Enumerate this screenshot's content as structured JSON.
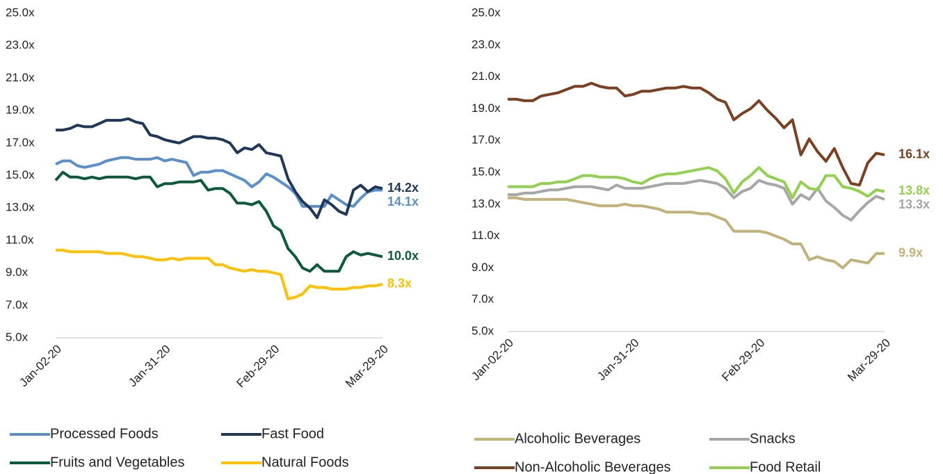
{
  "chart_data": [
    {
      "type": "line",
      "categories": [
        "Jan-02-20",
        null,
        null,
        null,
        null,
        null,
        null,
        null,
        null,
        null,
        null,
        null,
        null,
        null,
        null,
        "Jan-31-20",
        null,
        null,
        null,
        null,
        null,
        null,
        null,
        null,
        null,
        null,
        null,
        null,
        null,
        null,
        "Feb-29-20",
        null,
        null,
        null,
        null,
        null,
        null,
        null,
        null,
        null,
        null,
        null,
        null,
        null,
        null,
        "Mar-29-20"
      ],
      "ylim": [
        5,
        25
      ],
      "yticks": [
        {
          "value": 5,
          "label": "5.0x"
        },
        {
          "value": 7,
          "label": "7.0x"
        },
        {
          "value": 9,
          "label": "9.0x"
        },
        {
          "value": 11,
          "label": "11.0x"
        },
        {
          "value": 13,
          "label": "13.0x"
        },
        {
          "value": 15,
          "label": "15.0x"
        },
        {
          "value": 17,
          "label": "17.0x"
        },
        {
          "value": 19,
          "label": "19.0x"
        },
        {
          "value": 21,
          "label": "21.0x"
        },
        {
          "value": 23,
          "label": "23.0x"
        },
        {
          "value": 25,
          "label": "25.0x"
        }
      ],
      "series": [
        {
          "name": "Processed Foods",
          "color": "#5b8fc9",
          "values": [
            15.7,
            15.9,
            15.9,
            15.6,
            15.5,
            15.6,
            15.7,
            15.9,
            16.0,
            16.1,
            16.1,
            16.0,
            16.0,
            16.0,
            16.1,
            15.9,
            16.0,
            15.9,
            15.8,
            15.0,
            15.2,
            15.2,
            15.3,
            15.3,
            15.1,
            14.9,
            14.7,
            14.3,
            14.6,
            15.1,
            14.9,
            14.6,
            14.3,
            13.9,
            13.1,
            13.1,
            13.1,
            13.1,
            13.8,
            13.5,
            13.2,
            13.1,
            13.6,
            14.0,
            14.1,
            14.1
          ],
          "value_labels": [
            null,
            null,
            null,
            null,
            null,
            null,
            null,
            null,
            null,
            null,
            null,
            null,
            null,
            null,
            null,
            null,
            null,
            null,
            null,
            null,
            null,
            null,
            null,
            null,
            null,
            null,
            null,
            null,
            null,
            null,
            null,
            null,
            null,
            null,
            null,
            null,
            null,
            null,
            null,
            null,
            null,
            null,
            null,
            null,
            null,
            "14.1x"
          ]
        },
        {
          "name": "Fast Food",
          "color": "#1f3857",
          "values": [
            17.8,
            17.8,
            17.9,
            18.1,
            18.0,
            18.0,
            18.2,
            18.4,
            18.4,
            18.4,
            18.5,
            18.3,
            18.2,
            17.5,
            17.4,
            17.2,
            17.1,
            17.0,
            17.2,
            17.4,
            17.4,
            17.3,
            17.3,
            17.2,
            17.0,
            16.4,
            16.7,
            16.6,
            16.9,
            16.4,
            16.3,
            16.2,
            14.8,
            14.0,
            13.4,
            13.0,
            12.4,
            13.5,
            13.2,
            12.8,
            12.6,
            14.1,
            14.4,
            14.0,
            14.3,
            14.2
          ],
          "value_labels": [
            null,
            null,
            null,
            null,
            null,
            null,
            null,
            null,
            null,
            null,
            null,
            null,
            null,
            null,
            null,
            null,
            null,
            null,
            null,
            null,
            null,
            null,
            null,
            null,
            null,
            null,
            null,
            null,
            null,
            null,
            null,
            null,
            null,
            null,
            null,
            null,
            null,
            null,
            null,
            null,
            null,
            null,
            null,
            null,
            null,
            "14.2x"
          ]
        },
        {
          "name": "Fruits and Vegetables",
          "color": "#0b5a3c",
          "values": [
            14.7,
            15.2,
            14.9,
            14.9,
            14.8,
            14.9,
            14.8,
            14.9,
            14.9,
            14.9,
            14.9,
            14.8,
            14.9,
            14.9,
            14.3,
            14.5,
            14.5,
            14.6,
            14.6,
            14.6,
            14.7,
            14.1,
            14.2,
            14.2,
            13.9,
            13.3,
            13.3,
            13.2,
            13.4,
            12.8,
            11.9,
            11.6,
            10.5,
            10.0,
            9.3,
            9.1,
            9.5,
            9.1,
            9.1,
            9.1,
            10.0,
            10.3,
            10.1,
            10.2,
            10.1,
            10.0
          ],
          "value_labels": [
            null,
            null,
            null,
            null,
            null,
            null,
            null,
            null,
            null,
            null,
            null,
            null,
            null,
            null,
            null,
            null,
            null,
            null,
            null,
            null,
            null,
            null,
            null,
            null,
            null,
            null,
            null,
            null,
            null,
            null,
            null,
            null,
            null,
            null,
            null,
            null,
            null,
            null,
            null,
            null,
            null,
            null,
            null,
            null,
            null,
            "10.0x"
          ]
        },
        {
          "name": "Natural Foods",
          "color": "#ffc000",
          "values": [
            10.4,
            10.4,
            10.3,
            10.3,
            10.3,
            10.3,
            10.3,
            10.2,
            10.2,
            10.2,
            10.1,
            10.0,
            10.0,
            9.9,
            9.8,
            9.8,
            9.9,
            9.8,
            9.9,
            9.9,
            9.9,
            9.9,
            9.5,
            9.5,
            9.3,
            9.2,
            9.1,
            9.2,
            9.1,
            9.1,
            9.0,
            8.9,
            7.4,
            7.5,
            7.7,
            8.2,
            8.1,
            8.1,
            8.0,
            8.0,
            8.0,
            8.1,
            8.1,
            8.2,
            8.2,
            8.3
          ],
          "value_labels": [
            null,
            null,
            null,
            null,
            null,
            null,
            null,
            null,
            null,
            null,
            null,
            null,
            null,
            null,
            null,
            null,
            null,
            null,
            null,
            null,
            null,
            null,
            null,
            null,
            null,
            null,
            null,
            null,
            null,
            null,
            null,
            null,
            null,
            null,
            null,
            null,
            null,
            null,
            null,
            null,
            null,
            null,
            null,
            null,
            null,
            "8.3x"
          ]
        }
      ]
    },
    {
      "type": "line",
      "categories": [
        "Jan-02-20",
        null,
        null,
        null,
        null,
        null,
        null,
        null,
        null,
        null,
        null,
        null,
        null,
        null,
        null,
        "Jan-31-20",
        null,
        null,
        null,
        null,
        null,
        null,
        null,
        null,
        null,
        null,
        null,
        null,
        null,
        null,
        "Feb-29-20",
        null,
        null,
        null,
        null,
        null,
        null,
        null,
        null,
        null,
        null,
        null,
        null,
        null,
        null,
        "Mar-29-20"
      ],
      "ylim": [
        5,
        25
      ],
      "yticks": [
        {
          "value": 5,
          "label": "5.0x"
        },
        {
          "value": 7,
          "label": "7.0x"
        },
        {
          "value": 9,
          "label": "9.0x"
        },
        {
          "value": 11,
          "label": "11.0x"
        },
        {
          "value": 13,
          "label": "13.0x"
        },
        {
          "value": 15,
          "label": "15.0x"
        },
        {
          "value": 17,
          "label": "17.0x"
        },
        {
          "value": 19,
          "label": "19.0x"
        },
        {
          "value": 21,
          "label": "21.0x"
        },
        {
          "value": 23,
          "label": "23.0x"
        },
        {
          "value": 25,
          "label": "25.0x"
        }
      ],
      "series": [
        {
          "name": "Alcoholic Beverages",
          "color": "#c2b27a",
          "values": [
            13.4,
            13.4,
            13.3,
            13.3,
            13.3,
            13.3,
            13.3,
            13.3,
            13.2,
            13.1,
            13.0,
            12.9,
            12.9,
            12.9,
            13.0,
            12.9,
            12.9,
            12.8,
            12.7,
            12.5,
            12.5,
            12.5,
            12.5,
            12.4,
            12.4,
            12.2,
            12.0,
            11.3,
            11.3,
            11.3,
            11.3,
            11.2,
            11.0,
            10.8,
            10.5,
            10.5,
            9.5,
            9.7,
            9.5,
            9.4,
            9.0,
            9.5,
            9.4,
            9.3,
            9.9,
            9.9
          ],
          "value_labels": [
            null,
            null,
            null,
            null,
            null,
            null,
            null,
            null,
            null,
            null,
            null,
            null,
            null,
            null,
            null,
            null,
            null,
            null,
            null,
            null,
            null,
            null,
            null,
            null,
            null,
            null,
            null,
            null,
            null,
            null,
            null,
            null,
            null,
            null,
            null,
            null,
            null,
            null,
            null,
            null,
            null,
            null,
            null,
            null,
            null,
            "9.9x"
          ]
        },
        {
          "name": "Snacks",
          "color": "#a6a6a6",
          "values": [
            13.6,
            13.6,
            13.7,
            13.7,
            13.8,
            13.9,
            13.9,
            14.0,
            14.1,
            14.1,
            14.1,
            14.0,
            13.9,
            14.2,
            14.0,
            14.0,
            14.0,
            14.1,
            14.2,
            14.3,
            14.3,
            14.3,
            14.4,
            14.5,
            14.4,
            14.3,
            14.0,
            13.4,
            13.8,
            14.0,
            14.5,
            14.3,
            14.2,
            14.0,
            13.0,
            13.6,
            13.3,
            14.0,
            13.2,
            12.8,
            12.3,
            12.0,
            12.6,
            13.1,
            13.5,
            13.3
          ],
          "value_labels": [
            null,
            null,
            null,
            null,
            null,
            null,
            null,
            null,
            null,
            null,
            null,
            null,
            null,
            null,
            null,
            null,
            null,
            null,
            null,
            null,
            null,
            null,
            null,
            null,
            null,
            null,
            null,
            null,
            null,
            null,
            null,
            null,
            null,
            null,
            null,
            null,
            null,
            null,
            null,
            null,
            null,
            null,
            null,
            null,
            null,
            "13.3x"
          ]
        },
        {
          "name": "Non-Alcoholic Beverages",
          "color": "#7b3f22",
          "values": [
            19.6,
            19.6,
            19.5,
            19.5,
            19.8,
            19.9,
            20.0,
            20.2,
            20.4,
            20.4,
            20.6,
            20.4,
            20.3,
            20.3,
            19.8,
            19.9,
            20.1,
            20.1,
            20.2,
            20.3,
            20.3,
            20.4,
            20.3,
            20.3,
            20.0,
            19.6,
            19.4,
            18.3,
            18.7,
            19.0,
            19.5,
            18.9,
            18.4,
            17.8,
            18.3,
            16.1,
            17.1,
            16.3,
            15.7,
            16.5,
            15.3,
            14.3,
            14.2,
            15.6,
            16.2,
            16.1
          ],
          "value_labels": [
            null,
            null,
            null,
            null,
            null,
            null,
            null,
            null,
            null,
            null,
            null,
            null,
            null,
            null,
            null,
            null,
            null,
            null,
            null,
            null,
            null,
            null,
            null,
            null,
            null,
            null,
            null,
            null,
            null,
            null,
            null,
            null,
            null,
            null,
            null,
            null,
            null,
            null,
            null,
            null,
            null,
            null,
            null,
            null,
            null,
            "16.1x"
          ]
        },
        {
          "name": "Food Retail",
          "color": "#92d050",
          "values": [
            14.1,
            14.1,
            14.1,
            14.1,
            14.3,
            14.3,
            14.4,
            14.4,
            14.6,
            14.8,
            14.8,
            14.7,
            14.7,
            14.7,
            14.6,
            14.4,
            14.3,
            14.6,
            14.8,
            14.9,
            14.9,
            15.0,
            15.1,
            15.2,
            15.3,
            15.1,
            14.6,
            13.7,
            14.4,
            14.8,
            15.3,
            14.8,
            14.6,
            14.4,
            13.4,
            14.4,
            14.0,
            13.9,
            14.8,
            14.8,
            14.1,
            14.0,
            13.8,
            13.5,
            13.9,
            13.8
          ],
          "value_labels": [
            null,
            null,
            null,
            null,
            null,
            null,
            null,
            null,
            null,
            null,
            null,
            null,
            null,
            null,
            null,
            null,
            null,
            null,
            null,
            null,
            null,
            null,
            null,
            null,
            null,
            null,
            null,
            null,
            null,
            null,
            null,
            null,
            null,
            null,
            null,
            null,
            null,
            null,
            null,
            null,
            null,
            null,
            null,
            null,
            null,
            "13.8x"
          ]
        }
      ]
    }
  ]
}
